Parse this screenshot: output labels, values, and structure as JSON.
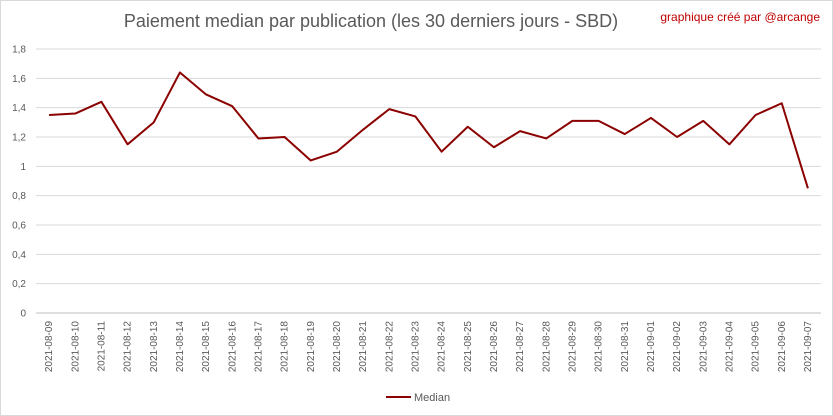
{
  "colors": {
    "series": "#8b0000",
    "credit": "#c00000",
    "grid": "#d9d9d9"
  },
  "chart_data": {
    "type": "line",
    "title": "Paiement median par publication (les 30 derniers jours - SBD)",
    "credit": "graphique créé par @arcange",
    "xlabel": "",
    "ylabel": "",
    "ylim": [
      0,
      1.8
    ],
    "yticks": [
      "0",
      "0,2",
      "0,4",
      "0,6",
      "0,8",
      "1",
      "1,2",
      "1,4",
      "1,6",
      "1,8"
    ],
    "grid": true,
    "legend_position": "bottom",
    "categories": [
      "2021-08-09",
      "2021-08-10",
      "2021-08-11",
      "2021-08-12",
      "2021-08-13",
      "2021-08-14",
      "2021-08-15",
      "2021-08-16",
      "2021-08-17",
      "2021-08-18",
      "2021-08-19",
      "2021-08-20",
      "2021-08-21",
      "2021-08-22",
      "2021-08-23",
      "2021-08-24",
      "2021-08-25",
      "2021-08-26",
      "2021-08-27",
      "2021-08-28",
      "2021-08-29",
      "2021-08-30",
      "2021-08-31",
      "2021-09-01",
      "2021-09-02",
      "2021-09-03",
      "2021-09-04",
      "2021-09-05",
      "2021-09-06",
      "2021-09-07"
    ],
    "series": [
      {
        "name": "Median",
        "values": [
          1.35,
          1.36,
          1.44,
          1.15,
          1.3,
          1.64,
          1.49,
          1.41,
          1.19,
          1.2,
          1.04,
          1.1,
          1.25,
          1.39,
          1.34,
          1.1,
          1.27,
          1.13,
          1.24,
          1.19,
          1.31,
          1.31,
          1.22,
          1.33,
          1.2,
          1.31,
          1.15,
          1.35,
          1.43,
          0.85
        ]
      }
    ]
  }
}
